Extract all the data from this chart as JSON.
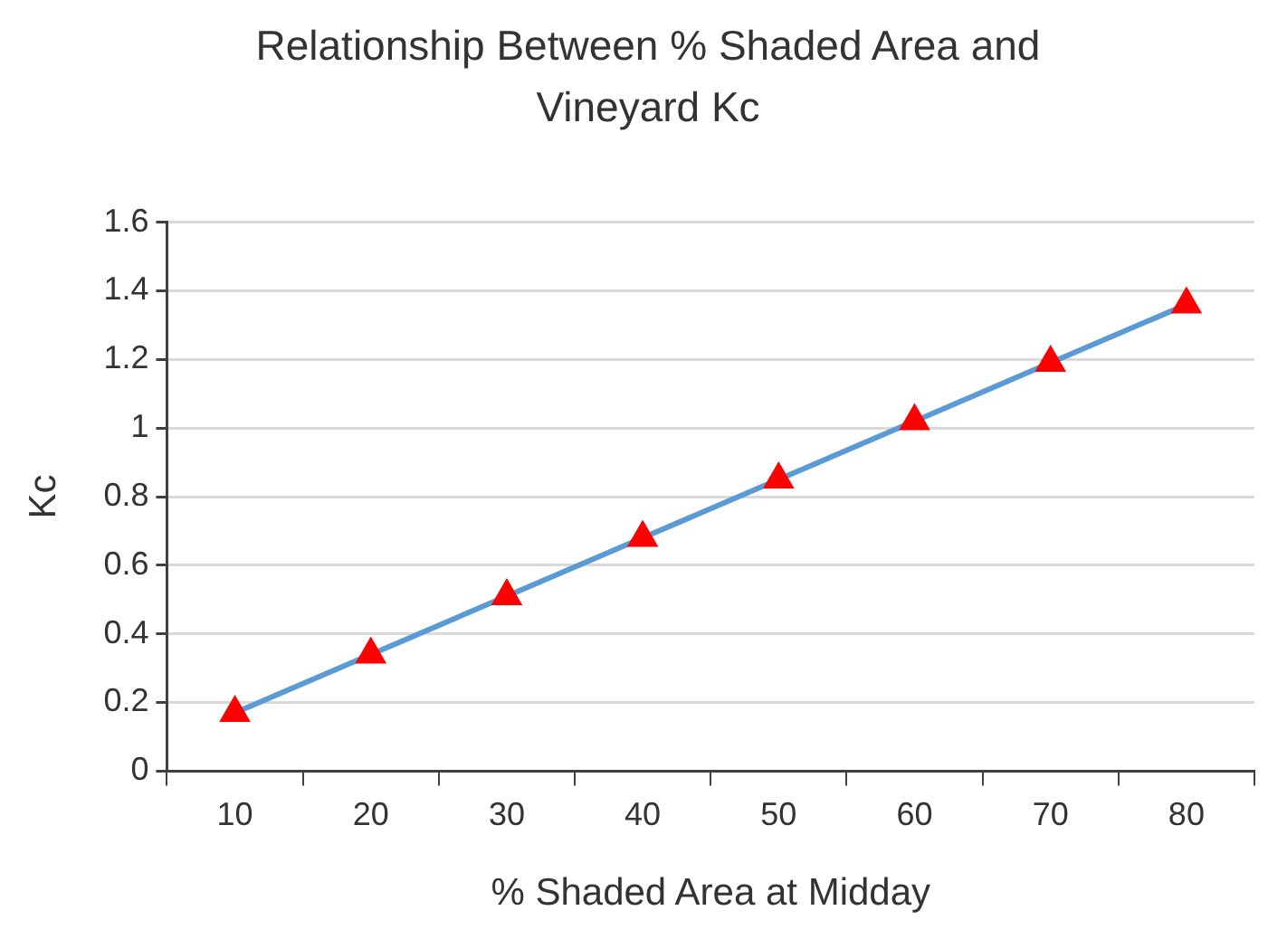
{
  "chart_data": {
    "type": "line",
    "title": "Relationship Between % Shaded Area and Vineyard Kc",
    "xlabel": "% Shaded Area at Midday",
    "ylabel": "Kc",
    "categories": [
      "10",
      "20",
      "30",
      "40",
      "50",
      "60",
      "70",
      "80"
    ],
    "series": [
      {
        "color": "#5b9bd5",
        "marker": "none",
        "line_style": "solid",
        "values": [
          0.17,
          0.34,
          0.51,
          0.68,
          0.85,
          1.02,
          1.19,
          1.36
        ]
      },
      {
        "type": "scatter",
        "color": "#ff0000",
        "marker": "triangle",
        "x": [
          "10",
          "20",
          "30",
          "40",
          "50",
          "60",
          "70",
          "80"
        ],
        "values": [
          0.17,
          0.34,
          0.51,
          0.68,
          0.85,
          1.02,
          1.19,
          1.36
        ]
      }
    ],
    "ylim": [
      0,
      1.6
    ],
    "yticks": [
      0,
      0.2,
      0.4,
      0.6,
      0.8,
      1,
      1.2,
      1.4,
      1.6
    ],
    "grid": "y",
    "legend": false
  }
}
